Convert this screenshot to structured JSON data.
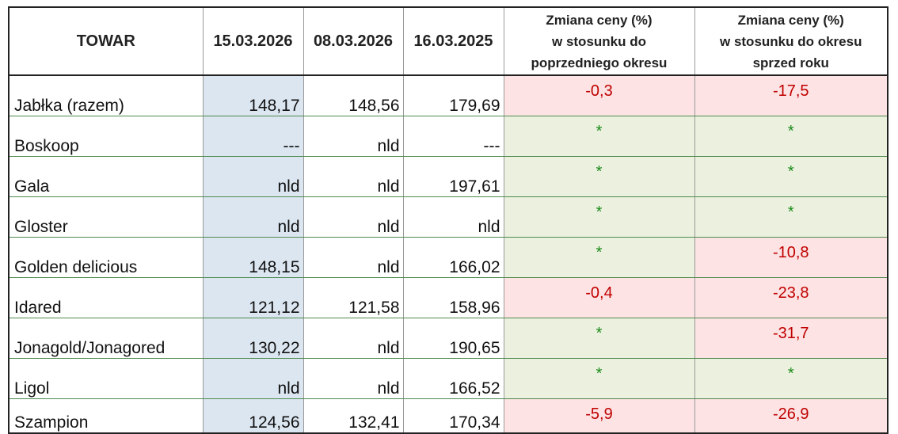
{
  "table": {
    "headers": [
      [
        "TOWAR"
      ],
      [
        "15.03.2026"
      ],
      [
        "08.03.2026"
      ],
      [
        "16.03.2025"
      ],
      [
        "Zmiana ceny (%)",
        "w stosunku do",
        "poprzedniego okresu"
      ],
      [
        "Zmiana ceny (%)",
        "w stosunku do okresu",
        "sprzed roku"
      ]
    ],
    "rows": [
      [
        "Jabłka (razem)",
        "148,17",
        "148,56",
        "179,69",
        "-0,3",
        "-17,5"
      ],
      [
        "Boskoop",
        "---",
        "nld",
        "---",
        "*",
        "*"
      ],
      [
        "Gala",
        "nld",
        "nld",
        "197,61",
        "*",
        "*"
      ],
      [
        "Gloster",
        "nld",
        "nld",
        "nld",
        "*",
        "*"
      ],
      [
        "Golden delicious",
        "148,15",
        "nld",
        "166,02",
        "*",
        "-10,8"
      ],
      [
        "Idared",
        "121,12",
        "121,58",
        "158,96",
        "-0,4",
        "-23,8"
      ],
      [
        "Jonagold/Jonagored",
        "130,22",
        "nld",
        "190,65",
        "*",
        "-31,7"
      ],
      [
        "Ligol",
        "nld",
        "nld",
        "166,52",
        "*",
        "*"
      ],
      [
        "Szampion",
        "124,56",
        "132,41",
        "170,34",
        "-5,9",
        "-26,9"
      ]
    ]
  }
}
